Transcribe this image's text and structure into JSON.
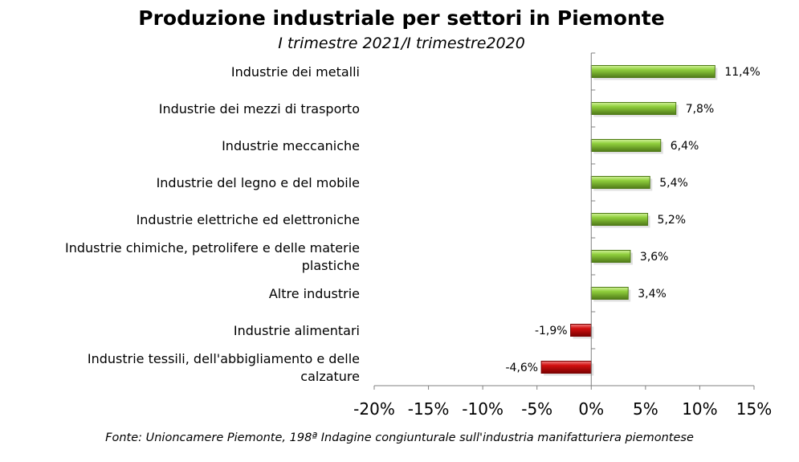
{
  "chart_data": {
    "type": "bar",
    "orientation": "horizontal",
    "title": "Produzione industriale per settori in Piemonte",
    "subtitle": "I trimestre 2021/I trimestre2020",
    "categories": [
      "Industrie dei metalli",
      "Industrie dei mezzi di trasporto",
      "Industrie meccaniche",
      "Industrie del legno e del mobile",
      "Industrie elettriche ed elettroniche",
      "Industrie chimiche, petrolifere e delle materie plastiche",
      "Altre industrie",
      "Industrie alimentari",
      "Industrie tessili, dell'abbigliamento e delle calzature"
    ],
    "category_lines": [
      [
        "Industrie dei metalli"
      ],
      [
        "Industrie dei mezzi di trasporto"
      ],
      [
        "Industrie meccaniche"
      ],
      [
        "Industrie del legno e del mobile"
      ],
      [
        "Industrie elettriche ed elettroniche"
      ],
      [
        "Industrie chimiche, petrolifere e delle materie",
        "plastiche"
      ],
      [
        "Altre industrie"
      ],
      [
        "Industrie alimentari"
      ],
      [
        "Industrie tessili, dell'abbigliamento e delle",
        "calzature"
      ]
    ],
    "values": [
      11.4,
      7.8,
      6.4,
      5.4,
      5.2,
      3.6,
      3.4,
      -1.9,
      -4.6
    ],
    "value_labels": [
      "11,4%",
      "7,8%",
      "6,4%",
      "5,4%",
      "5,2%",
      "3,6%",
      "3,4%",
      "-1,9%",
      "-4,6%"
    ],
    "xlim": [
      -20,
      15
    ],
    "xticks": [
      -20,
      -15,
      -10,
      -5,
      0,
      5,
      10,
      15
    ],
    "xtick_labels": [
      "-20%",
      "-15%",
      "-10%",
      "-5%",
      "0%",
      "5%",
      "10%",
      "15%"
    ],
    "xlabel": "",
    "ylabel": "",
    "grid": false,
    "colors": {
      "positive": "#8fce3c",
      "positive_dark": "#4f7a18",
      "positive_light": "#d2f29a",
      "negative": "#d21010",
      "negative_dark": "#7a0000",
      "negative_light": "#f08080"
    }
  },
  "source": "Fonte: Unioncamere Piemonte, 198ª Indagine congiunturale sull'industria manifatturiera piemontese"
}
